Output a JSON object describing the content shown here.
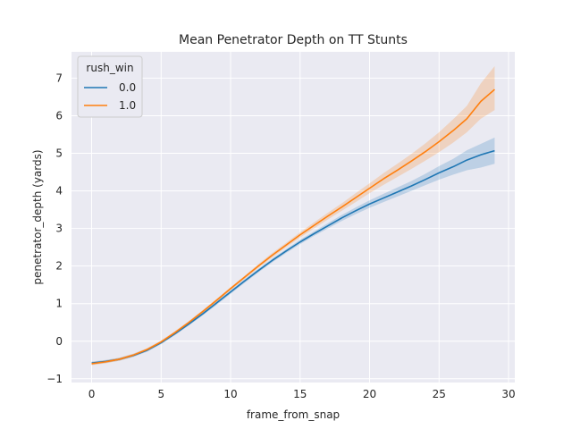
{
  "chart_data": {
    "type": "line",
    "title": "Mean Penetrator Depth on TT Stunts",
    "xlabel": "frame_from_snap",
    "ylabel": "penetrator_depth (yards)",
    "xlim": [
      -1.45,
      30.45
    ],
    "ylim": [
      -1.1,
      7.7
    ],
    "xticks": [
      0,
      5,
      10,
      15,
      20,
      25,
      30
    ],
    "yticks": [
      -1,
      0,
      1,
      2,
      3,
      4,
      5,
      6,
      7
    ],
    "grid": true,
    "legend": {
      "title": "rush_win",
      "placement": "top-left"
    },
    "x": [
      0,
      1,
      2,
      3,
      4,
      5,
      6,
      7,
      8,
      9,
      10,
      11,
      12,
      13,
      14,
      15,
      16,
      17,
      18,
      19,
      20,
      21,
      22,
      23,
      24,
      25,
      26,
      27,
      28,
      29
    ],
    "series": [
      {
        "name": "0.0",
        "color": "#1f77b4",
        "values": [
          -0.58,
          -0.54,
          -0.48,
          -0.38,
          -0.24,
          -0.04,
          0.2,
          0.46,
          0.73,
          1.02,
          1.31,
          1.6,
          1.88,
          2.15,
          2.4,
          2.64,
          2.86,
          3.07,
          3.28,
          3.47,
          3.65,
          3.81,
          3.97,
          4.13,
          4.3,
          4.48,
          4.64,
          4.82,
          4.96,
          5.07
        ],
        "lower": [
          -0.62,
          -0.58,
          -0.52,
          -0.42,
          -0.28,
          -0.08,
          0.16,
          0.42,
          0.69,
          0.97,
          1.26,
          1.55,
          1.83,
          2.1,
          2.35,
          2.58,
          2.8,
          3.0,
          3.2,
          3.38,
          3.55,
          3.7,
          3.85,
          4.0,
          4.15,
          4.3,
          4.43,
          4.55,
          4.62,
          4.72
        ],
        "upper": [
          -0.54,
          -0.5,
          -0.44,
          -0.34,
          -0.2,
          0.0,
          0.24,
          0.5,
          0.77,
          1.07,
          1.36,
          1.65,
          1.93,
          2.2,
          2.45,
          2.7,
          2.92,
          3.14,
          3.36,
          3.56,
          3.75,
          3.92,
          4.09,
          4.26,
          4.45,
          4.66,
          4.85,
          5.08,
          5.25,
          5.42
        ]
      },
      {
        "name": "1.0",
        "color": "#ff7f0e",
        "values": [
          -0.6,
          -0.55,
          -0.48,
          -0.37,
          -0.22,
          -0.02,
          0.23,
          0.5,
          0.79,
          1.09,
          1.4,
          1.7,
          2.0,
          2.29,
          2.56,
          2.83,
          3.08,
          3.33,
          3.57,
          3.82,
          4.07,
          4.32,
          4.55,
          4.79,
          5.04,
          5.31,
          5.6,
          5.92,
          6.38,
          6.7
        ],
        "lower": [
          -0.64,
          -0.59,
          -0.52,
          -0.41,
          -0.26,
          -0.06,
          0.19,
          0.46,
          0.75,
          1.05,
          1.36,
          1.66,
          1.95,
          2.23,
          2.5,
          2.76,
          3.0,
          3.24,
          3.47,
          3.7,
          3.94,
          4.16,
          4.37,
          4.58,
          4.8,
          5.03,
          5.28,
          5.56,
          5.92,
          6.15
        ],
        "upper": [
          -0.56,
          -0.51,
          -0.44,
          -0.33,
          -0.18,
          0.02,
          0.27,
          0.54,
          0.83,
          1.13,
          1.44,
          1.74,
          2.05,
          2.35,
          2.62,
          2.9,
          3.16,
          3.42,
          3.67,
          3.94,
          4.2,
          4.47,
          4.72,
          4.98,
          5.26,
          5.56,
          5.9,
          6.26,
          6.86,
          7.32
        ]
      }
    ]
  }
}
